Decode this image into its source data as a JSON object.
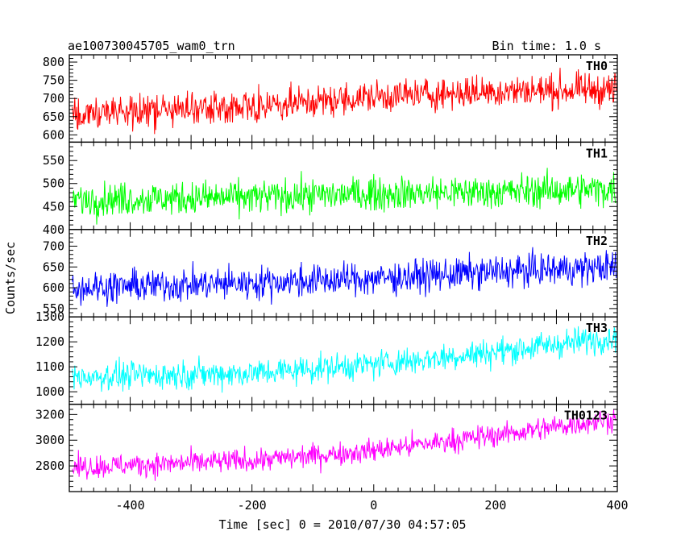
{
  "header": {
    "obs_id": "ae100730045705_wam0_trn",
    "bin_time": "Bin time: 1.0 s"
  },
  "chart_data": {
    "type": "line",
    "xlabel": "Time [sec] 0 = 2010/07/30 04:57:05",
    "ylabel": "Counts/sec",
    "xlim": [
      -500,
      400
    ],
    "x_ticks": [
      -400,
      -200,
      0,
      200,
      400
    ],
    "x_range": [
      -495,
      398
    ],
    "grid": false,
    "series": [
      {
        "name": "TH0",
        "color": "#ff0000",
        "ylim": [
          580,
          820
        ],
        "y_ticks": [
          600,
          650,
          700,
          750,
          800
        ],
        "trend": [
          [
            -495,
            655
          ],
          [
            -300,
            670
          ],
          [
            -100,
            690
          ],
          [
            0,
            705
          ],
          [
            200,
            720
          ],
          [
            400,
            725
          ]
        ],
        "noise": 32
      },
      {
        "name": "TH1",
        "color": "#00ff00",
        "ylim": [
          400,
          590
        ],
        "y_ticks": [
          400,
          450,
          500,
          550
        ],
        "trend": [
          [
            -495,
            465
          ],
          [
            -200,
            470
          ],
          [
            0,
            478
          ],
          [
            200,
            482
          ],
          [
            400,
            488
          ]
        ],
        "noise": 26
      },
      {
        "name": "TH2",
        "color": "#0000ff",
        "ylim": [
          530,
          740
        ],
        "y_ticks": [
          550,
          600,
          650,
          700
        ],
        "trend": [
          [
            -495,
            600
          ],
          [
            -200,
            612
          ],
          [
            0,
            622
          ],
          [
            200,
            638
          ],
          [
            400,
            650
          ]
        ],
        "noise": 28
      },
      {
        "name": "TH3",
        "color": "#00ffff",
        "ylim": [
          950,
          1300
        ],
        "y_ticks": [
          1000,
          1100,
          1200,
          1300
        ],
        "trend": [
          [
            -495,
            1060
          ],
          [
            -200,
            1075
          ],
          [
            0,
            1110
          ],
          [
            200,
            1160
          ],
          [
            400,
            1220
          ]
        ],
        "noise": 40
      },
      {
        "name": "TH0123",
        "color": "#ff00ff",
        "ylim": [
          2600,
          3280
        ],
        "y_ticks": [
          2800,
          3000,
          3200
        ],
        "trend": [
          [
            -495,
            2790
          ],
          [
            -200,
            2840
          ],
          [
            0,
            2920
          ],
          [
            200,
            3040
          ],
          [
            400,
            3170
          ]
        ],
        "noise": 65
      }
    ]
  }
}
